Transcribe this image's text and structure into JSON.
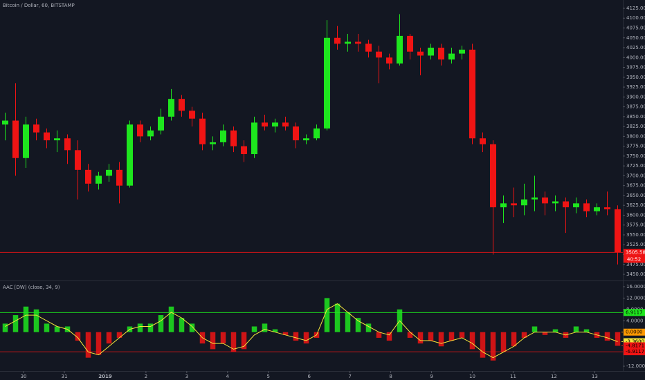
{
  "chart_data": [
    {
      "type": "candlestick",
      "title": "Bitcoin / Dollar, 60, BITSTAMP",
      "up_color": "#1ee61e",
      "down_color": "#f01414",
      "open": [
        3830,
        3840,
        3745,
        3830,
        3810,
        3790,
        3795,
        3765,
        3715,
        3680,
        3700,
        3715,
        3675,
        3830,
        3800,
        3815,
        3850,
        3895,
        3865,
        3845,
        3780,
        3785,
        3815,
        3775,
        3755,
        3835,
        3825,
        3835,
        3825,
        3790,
        3795,
        3820,
        4050,
        4035,
        4040,
        4035,
        4015,
        4000,
        3985,
        4055,
        4015,
        4005,
        4025,
        3995,
        4010,
        4020,
        3795,
        3780,
        3620,
        3630,
        3625,
        3640,
        3645,
        3630,
        3635,
        3620,
        3630,
        3610,
        3620,
        3615
      ],
      "high": [
        3860,
        3935,
        3850,
        3845,
        3820,
        3815,
        3805,
        3790,
        3730,
        3710,
        3730,
        3735,
        3840,
        3840,
        3825,
        3870,
        3920,
        3905,
        3875,
        3860,
        3800,
        3830,
        3825,
        3790,
        3850,
        3855,
        3845,
        3850,
        3835,
        3805,
        3830,
        4095,
        4080,
        4060,
        4060,
        4045,
        4030,
        4010,
        4110,
        4060,
        4025,
        4035,
        4035,
        4025,
        4030,
        4035,
        3810,
        3790,
        3650,
        3670,
        3680,
        3700,
        3660,
        3650,
        3645,
        3645,
        3640,
        3630,
        3660,
        3625
      ],
      "low": [
        3790,
        3700,
        3720,
        3790,
        3770,
        3760,
        3730,
        3640,
        3660,
        3665,
        3685,
        3630,
        3670,
        3785,
        3790,
        3805,
        3840,
        3850,
        3825,
        3765,
        3765,
        3775,
        3760,
        3735,
        3745,
        3815,
        3810,
        3815,
        3770,
        3780,
        3790,
        3815,
        4020,
        4015,
        4015,
        4000,
        3935,
        3970,
        3980,
        3995,
        3955,
        3995,
        3980,
        3985,
        3995,
        3780,
        3760,
        3500,
        3580,
        3595,
        3600,
        3610,
        3600,
        3610,
        3555,
        3605,
        3595,
        3600,
        3600,
        3475
      ],
      "close": [
        3840,
        3745,
        3830,
        3810,
        3790,
        3795,
        3765,
        3715,
        3680,
        3700,
        3715,
        3675,
        3830,
        3800,
        3815,
        3850,
        3895,
        3865,
        3845,
        3780,
        3785,
        3815,
        3775,
        3755,
        3835,
        3825,
        3835,
        3825,
        3790,
        3795,
        3820,
        4050,
        4035,
        4040,
        4035,
        4015,
        4000,
        3985,
        4055,
        4015,
        4005,
        4025,
        3995,
        4010,
        4020,
        3795,
        3780,
        3620,
        3630,
        3625,
        3640,
        3645,
        3630,
        3635,
        3620,
        3630,
        3610,
        3620,
        3615,
        3505.58
      ],
      "xlim": [
        0,
        60
      ],
      "ylim": [
        3436,
        4146
      ],
      "yticks": [
        {
          "value": 3450,
          "label": "3450.00"
        },
        {
          "value": 3475,
          "label": "3475.00"
        },
        {
          "value": 3500,
          "label": "3500.00"
        },
        {
          "value": 3525,
          "label": "3525.00"
        },
        {
          "value": 3550,
          "label": "3550.00"
        },
        {
          "value": 3575,
          "label": "3575.00"
        },
        {
          "value": 3600,
          "label": "3600.00"
        },
        {
          "value": 3625,
          "label": "3625.00"
        },
        {
          "value": 3650,
          "label": "3650.00"
        },
        {
          "value": 3675,
          "label": "3675.00"
        },
        {
          "value": 3700,
          "label": "3700.00"
        },
        {
          "value": 3725,
          "label": "3725.00"
        },
        {
          "value": 3750,
          "label": "3750.00"
        },
        {
          "value": 3775,
          "label": "3775.00"
        },
        {
          "value": 3800,
          "label": "3800.00"
        },
        {
          "value": 3825,
          "label": "3825.00"
        },
        {
          "value": 3850,
          "label": "3850.00"
        },
        {
          "value": 3875,
          "label": "3875.00"
        },
        {
          "value": 3900,
          "label": "3900.00"
        },
        {
          "value": 3925,
          "label": "3925.00"
        },
        {
          "value": 3950,
          "label": "3950.00"
        },
        {
          "value": 3975,
          "label": "3975.00"
        },
        {
          "value": 4000,
          "label": "4000.00"
        },
        {
          "value": 4025,
          "label": "4025.00"
        },
        {
          "value": 4050,
          "label": "4050.00"
        },
        {
          "value": 4075,
          "label": "4075.00"
        },
        {
          "value": 4100,
          "label": "4100.00"
        },
        {
          "value": 4125,
          "label": "4125.00"
        }
      ],
      "price_line": {
        "value": 3505.58,
        "label": "3505.58",
        "countdown": "40:52",
        "color": "#f01414"
      }
    },
    {
      "type": "histogram",
      "title": "AAC [DW] (close, 34, 9)",
      "positive_color": "#1ee61e",
      "negative_color": "#f01414",
      "values": [
        3,
        6,
        9,
        8,
        3,
        2,
        2,
        -3,
        -9,
        -8,
        -4,
        -2,
        2,
        3,
        3,
        6,
        9,
        5,
        3,
        -4,
        -6,
        -4,
        -7,
        -6,
        2,
        3,
        1,
        -1,
        -3,
        -4,
        -2,
        12,
        10,
        7,
        5,
        3,
        -2,
        -3,
        8,
        -2,
        -4,
        -3,
        -5,
        -3,
        -2,
        -6,
        -9,
        -10,
        -7,
        -5,
        -2,
        2,
        -1,
        1,
        -2,
        2,
        1,
        -2,
        -3,
        -4.8171
      ],
      "signal": {
        "color": "#f5e63c",
        "values": [
          2,
          4,
          6,
          6,
          4,
          2,
          1,
          -2,
          -7,
          -8,
          -5,
          -2,
          1,
          2,
          2,
          4,
          7,
          5,
          2,
          -2,
          -4,
          -4,
          -6,
          -5,
          -1,
          1,
          0,
          -1,
          -2,
          -3,
          -1,
          8,
          10,
          7,
          4,
          2,
          0,
          -1,
          4,
          0,
          -3,
          -3,
          -4,
          -3,
          -2,
          -4,
          -7,
          -9,
          -7,
          -5,
          -2,
          0,
          0,
          0,
          -1,
          0,
          0,
          -1,
          -2,
          -3.36
        ]
      },
      "xlim": [
        0,
        60
      ],
      "ylim": [
        -13.7,
        17.7
      ],
      "yticks": [
        {
          "value": 16,
          "label": "16.0000"
        },
        {
          "value": 12,
          "label": "12.0000"
        },
        {
          "value": 8,
          "label": "8.0000"
        },
        {
          "value": 4,
          "label": "4.0000"
        },
        {
          "value": -12,
          "label": "-12.0000"
        }
      ],
      "levels": [
        {
          "value": 6.9117,
          "label": "6.9117",
          "color": "#1ee61e"
        },
        {
          "value": -6.9117,
          "label": "-6.9117",
          "color": "#f01414"
        }
      ],
      "markers": [
        {
          "value": 0,
          "label": "0.0000",
          "color": "#ff9800"
        },
        {
          "value": -3.36,
          "label": "-3.3600",
          "color": "#f5e63c"
        },
        {
          "value": -4.8171,
          "label": "-4.8171",
          "color": "#f01414"
        }
      ],
      "xticks": [
        {
          "value": 2.27,
          "label": "30"
        },
        {
          "value": 6.2,
          "label": "31"
        },
        {
          "value": 10.13,
          "label": "2019"
        },
        {
          "value": 14.06,
          "label": "2"
        },
        {
          "value": 17.99,
          "label": "3"
        },
        {
          "value": 21.92,
          "label": "4"
        },
        {
          "value": 25.85,
          "label": "5"
        },
        {
          "value": 29.78,
          "label": "6"
        },
        {
          "value": 33.71,
          "label": "7"
        },
        {
          "value": 37.64,
          "label": "8"
        },
        {
          "value": 41.57,
          "label": "9"
        },
        {
          "value": 45.5,
          "label": "10"
        },
        {
          "value": 49.43,
          "label": "11"
        },
        {
          "value": 53.36,
          "label": "12"
        },
        {
          "value": 57.29,
          "label": "13"
        }
      ]
    }
  ]
}
